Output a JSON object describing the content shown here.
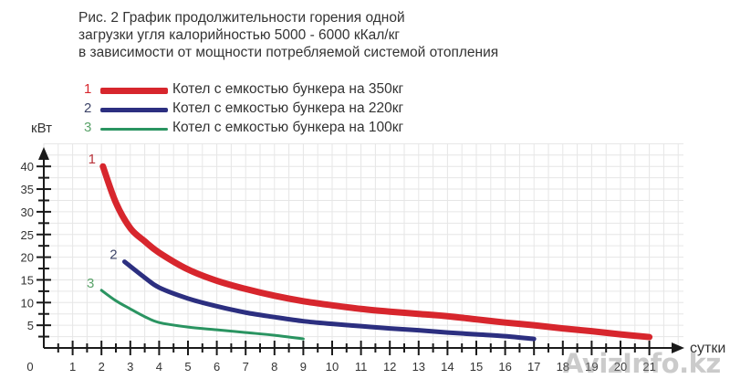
{
  "chart_data": {
    "type": "line",
    "title": "Рис. 2  График продолжительности горения одной загрузки угля калорийностью 5000 - 6000 кКал/кг в зависимости от мощности потребляемой системой отопления",
    "title_lines": [
      "Рис. 2  График продолжительности горения одной",
      "загрузки угля калорийностью 5000 - 6000 кКал/кг",
      "в зависимости от мощности потребляемой системой отопления"
    ],
    "xlabel": "сутки",
    "ylabel": "кВт",
    "xlim": [
      0,
      21
    ],
    "ylim": [
      0,
      40
    ],
    "x_ticks": [
      "0",
      "1",
      "2",
      "3",
      "4",
      "5",
      "6",
      "7",
      "8",
      "9",
      "10",
      "11",
      "12",
      "13",
      "14",
      "15",
      "16",
      "17",
      "18",
      "19",
      "20",
      "21"
    ],
    "y_ticks": [
      "5",
      "10",
      "15",
      "20",
      "25",
      "30",
      "35",
      "40"
    ],
    "grid": true,
    "legend_position": "top-left",
    "series": [
      {
        "id": "1",
        "name": "Котел с емкостью бункера на 350кг",
        "color": "#d7262d",
        "x": [
          2.05,
          2.5,
          3,
          3.5,
          4,
          5,
          6,
          7,
          8,
          9,
          10,
          11,
          12,
          13,
          14,
          15,
          16,
          17,
          18,
          19,
          20,
          21
        ],
        "y": [
          40,
          32,
          26.4,
          23.5,
          21,
          17.3,
          14.8,
          13,
          11.5,
          10.3,
          9.4,
          8.6,
          8.0,
          7.5,
          7.0,
          6.3,
          5.6,
          5.0,
          4.3,
          3.7,
          3.0,
          2.4
        ]
      },
      {
        "id": "2",
        "name": "Котел с емкостью бункера на 220кг",
        "color": "#2c2f80",
        "x": [
          2.8,
          3.5,
          4,
          5,
          6,
          7,
          8,
          9,
          10,
          11,
          12,
          13,
          14,
          15,
          16,
          17
        ],
        "y": [
          19,
          15.5,
          13.3,
          10.9,
          9.2,
          7.8,
          6.8,
          5.9,
          5.3,
          4.8,
          4.3,
          3.9,
          3.4,
          3.0,
          2.6,
          2.0
        ]
      },
      {
        "id": "3",
        "name": "Котел с емкостью бункера на 100кг",
        "color": "#2a9461",
        "x": [
          2,
          2.5,
          3,
          3.5,
          4,
          5,
          6,
          7,
          8,
          9
        ],
        "y": [
          12.7,
          10.4,
          8.6,
          6.9,
          5.6,
          4.6,
          4.0,
          3.4,
          2.8,
          2.0
        ]
      }
    ]
  },
  "title": {
    "line1": "Рис. 2  График продолжительности горения одной",
    "line2": "загрузки угля калорийностью 5000 - 6000 кКал/кг",
    "line3": "в зависимости от мощности потребляемой системой отопления"
  },
  "legend": [
    {
      "num": "1",
      "label": "Котел с емкостью бункера на 350кг",
      "color": "#d7262d"
    },
    {
      "num": "2",
      "label": "Котел с емкостью бункера на 220кг",
      "color": "#2c2f80"
    },
    {
      "num": "3",
      "label": "Котел с емкостью бункера на 100кг",
      "color": "#2a9461"
    }
  ],
  "watermark": "AvizInfo.kz"
}
